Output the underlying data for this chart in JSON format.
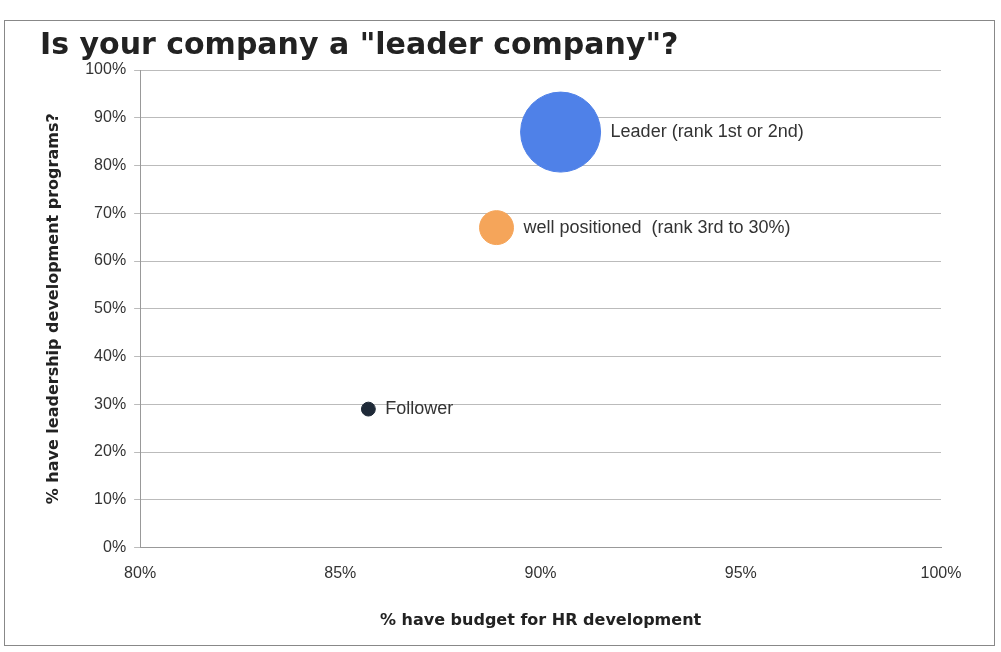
{
  "chart_data": {
    "type": "bubble",
    "title": "Is your company a \"leader company\"?",
    "xlabel": "% have budget for HR development",
    "ylabel": "% have leadership development programs?",
    "series": [
      {
        "name": "Leader (rank 1st or 2nd)",
        "color": "#4f81e8",
        "x": [
          90.5
        ],
        "values": [
          87
        ],
        "sizes": [
          1
        ]
      },
      {
        "name": "well positioned  (rank 3rd to 30%)",
        "color": "#f5a55a",
        "x": [
          88.9
        ],
        "values": [
          67
        ],
        "sizes": [
          0.18
        ]
      },
      {
        "name": "Follower",
        "color": "#1f2a38",
        "x": [
          85.7
        ],
        "values": [
          29
        ],
        "sizes": [
          0.03
        ]
      }
    ],
    "xlim": [
      80,
      100
    ],
    "xticks": [
      {
        "value": 80,
        "label": "80%"
      },
      {
        "value": 85,
        "label": "85%"
      },
      {
        "value": 90,
        "label": "90%"
      },
      {
        "value": 95,
        "label": "95%"
      },
      {
        "value": 100,
        "label": "100%"
      }
    ],
    "ylim": [
      0,
      100
    ],
    "yticks": [
      {
        "value": 0,
        "label": "0%"
      },
      {
        "value": 10,
        "label": "10%"
      },
      {
        "value": 20,
        "label": "20%"
      },
      {
        "value": 30,
        "label": "30%"
      },
      {
        "value": 40,
        "label": "40%"
      },
      {
        "value": 50,
        "label": "50%"
      },
      {
        "value": 60,
        "label": "60%"
      },
      {
        "value": 70,
        "label": "70%"
      },
      {
        "value": 80,
        "label": "80%"
      },
      {
        "value": 90,
        "label": "90%"
      },
      {
        "value": 100,
        "label": "100%"
      }
    ],
    "grid": "y",
    "legend": false
  }
}
